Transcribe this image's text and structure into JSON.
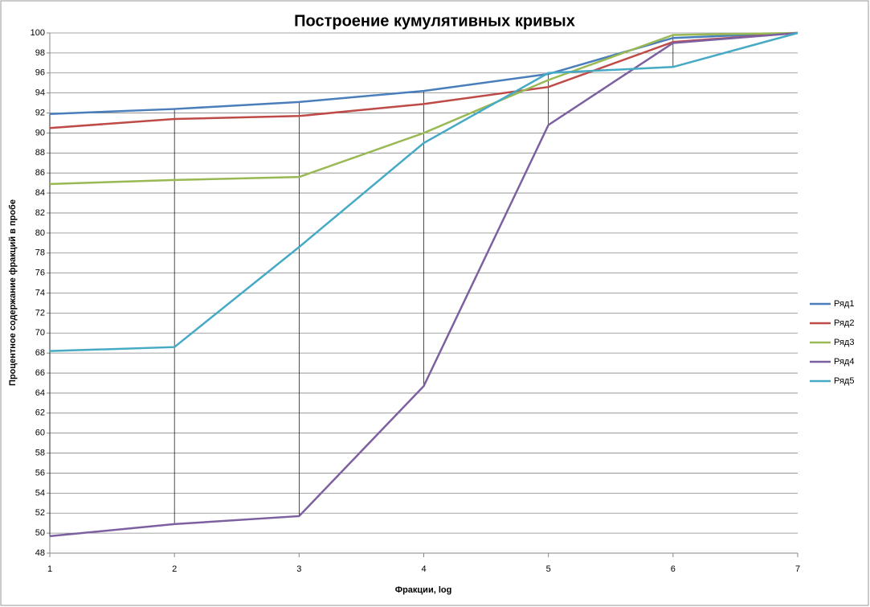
{
  "chart_data": {
    "type": "line",
    "title": "Построение кумулятивных кривых",
    "x_label": "Фракции, log",
    "y_label": "Процентное содержание фракций в пробе",
    "x": [
      1,
      2,
      3,
      4,
      5,
      6,
      7
    ],
    "xlim": [
      1,
      7
    ],
    "xticks": [
      1,
      2,
      3,
      4,
      5,
      6,
      7
    ],
    "ylim": [
      48,
      100
    ],
    "yticks": [
      48,
      50,
      52,
      54,
      56,
      58,
      60,
      62,
      64,
      66,
      68,
      70,
      72,
      74,
      76,
      78,
      80,
      82,
      84,
      86,
      88,
      90,
      92,
      94,
      96,
      98,
      100
    ],
    "grid": true,
    "high_low_lines": true,
    "legend": "right",
    "series": [
      {
        "name": "Ряд1",
        "color": "#4a7ebb",
        "values": [
          91.9,
          92.4,
          93.1,
          94.2,
          95.9,
          99.5,
          100
        ]
      },
      {
        "name": "Ряд2",
        "color": "#be4b48",
        "values": [
          90.5,
          91.4,
          91.7,
          92.9,
          94.6,
          99.1,
          100
        ]
      },
      {
        "name": "Ряд3",
        "color": "#98b954",
        "values": [
          84.9,
          85.3,
          85.6,
          90.0,
          95.3,
          99.8,
          100
        ]
      },
      {
        "name": "Ряд4",
        "color": "#7d60a0",
        "values": [
          49.7,
          50.9,
          51.7,
          64.7,
          90.8,
          99.0,
          100
        ]
      },
      {
        "name": "Ряд5",
        "color": "#46aac5",
        "values": [
          68.2,
          68.6,
          78.6,
          89.0,
          96.0,
          96.6,
          100
        ]
      }
    ]
  }
}
